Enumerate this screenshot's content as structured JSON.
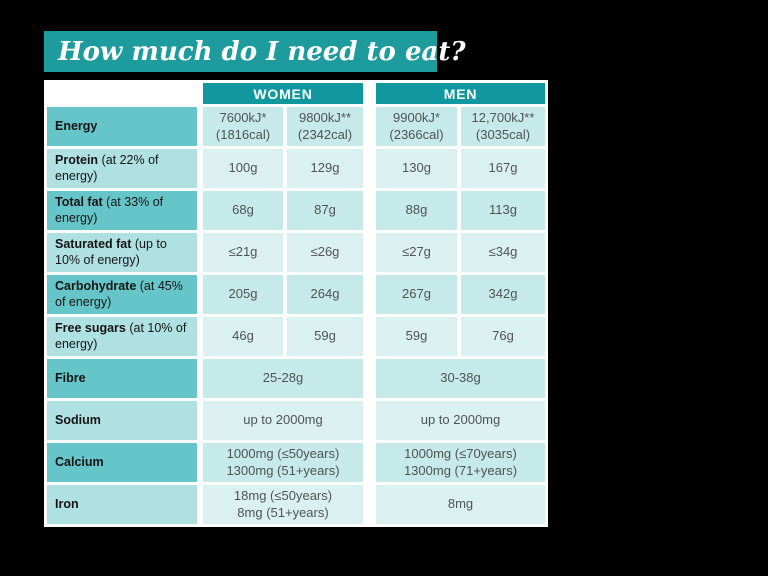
{
  "title": "How much do I need to eat?",
  "colors": {
    "background": "#000000",
    "sheet": "#ffffff",
    "banner_teal": "#1e9b9c",
    "header_teal": "#11989e",
    "label_dark_teal": "#66c5c8",
    "label_light_teal": "#b0e1e2",
    "value_dark_teal": "#c6e9ea",
    "value_light_teal": "#dbf1f1"
  },
  "table": {
    "group_headers": [
      "WOMEN",
      "MEN"
    ],
    "rows": [
      {
        "label_bold": "Energy",
        "label_rest": "",
        "cells": [
          "7600kJ*\n(1816cal)",
          "9800kJ**\n(2342cal)",
          "9900kJ*\n(2366cal)",
          "12,700kJ**\n(3035cal)"
        ]
      },
      {
        "label_bold": "Protein",
        "label_rest": " (at 22% of energy)",
        "cells": [
          "100g",
          "129g",
          "130g",
          "167g"
        ]
      },
      {
        "label_bold": "Total fat",
        "label_rest": " (at 33% of energy)",
        "cells": [
          "68g",
          "87g",
          "88g",
          "113g"
        ]
      },
      {
        "label_bold": "Saturated fat",
        "label_rest": " (up to 10% of energy)",
        "cells": [
          "≤21g",
          "≤26g",
          "≤27g",
          "≤34g"
        ]
      },
      {
        "label_bold": "Carbohydrate",
        "label_rest": " (at 45% of energy)",
        "cells": [
          "205g",
          "264g",
          "267g",
          "342g"
        ]
      },
      {
        "label_bold": "Free sugars",
        "label_rest": " (at 10% of energy)",
        "cells": [
          "46g",
          "59g",
          "59g",
          "76g"
        ]
      },
      {
        "label_bold": "Fibre",
        "label_rest": "",
        "cells": [
          "25-28g",
          "30-38g"
        ]
      },
      {
        "label_bold": "Sodium",
        "label_rest": "",
        "cells": [
          "up to 2000mg",
          "up to 2000mg"
        ]
      },
      {
        "label_bold": "Calcium",
        "label_rest": "",
        "cells": [
          "1000mg (≤50years)\n1300mg (51+years)",
          "1000mg (≤70years)\n1300mg (71+years)"
        ]
      },
      {
        "label_bold": "Iron",
        "label_rest": "",
        "cells": [
          "18mg (≤50years)\n8mg (51+years)",
          "8mg"
        ]
      }
    ]
  }
}
